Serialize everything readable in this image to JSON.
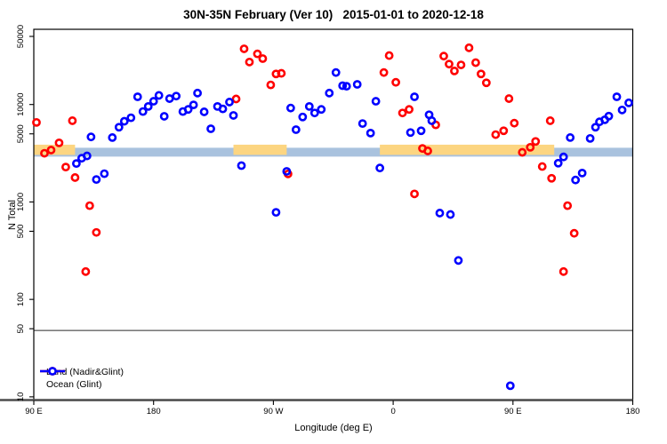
{
  "title": "30N-35N February (Ver 10)   2015-01-01 to 2020-12-18",
  "x_axis": {
    "label": "Longitude (deg E)",
    "ticks": [
      {
        "lon": 90,
        "label": "90 E"
      },
      {
        "lon": 180,
        "label": "180"
      },
      {
        "lon": 270,
        "label": "90 W"
      },
      {
        "lon": 360,
        "label": "0"
      },
      {
        "lon": 450,
        "label": "90 E"
      },
      {
        "lon": 540,
        "label": "180"
      }
    ]
  },
  "y_axis": {
    "label": "N Total",
    "ticks": [
      50000,
      10000,
      5000,
      1000,
      500,
      100,
      50,
      10
    ]
  },
  "legend": [
    {
      "label": "Land (Nadir&Glint)",
      "color": "#ff0000"
    },
    {
      "label": "Ocean (Glint)",
      "color": "#0000ff"
    }
  ],
  "chart_data": {
    "type": "scatter",
    "title": "30N-35N February (Ver 10)   2015-01-01 to 2020-12-18",
    "xlabel": "Longitude (deg E)",
    "ylabel": "N Total",
    "x_axis_note": "longitude axis runs 90E to 180 to 90W to 0 to 90E to 180 (plotted as 90..540 deg)",
    "xlim": [
      90,
      540
    ],
    "ylim": [
      10,
      50000
    ],
    "log_y": true,
    "grid": false,
    "legend_position": "bottom-left",
    "marker": "open-circle",
    "reference_line_y": 48,
    "band": {
      "ocean_band": {
        "color": "#a9c2de",
        "from": 90,
        "to": 540,
        "value_range": [
          2920,
          3600
        ]
      },
      "land_band": {
        "color": "#fcd581",
        "value_range": [
          3040,
          3870
        ],
        "segments": [
          [
            90,
            121
          ],
          [
            240,
            280
          ],
          [
            350,
            481
          ]
        ]
      }
    },
    "series": [
      {
        "name": "Land (Nadir&Glint)",
        "color": "#ff0000",
        "points": [
          [
            92,
            6550
          ],
          [
            119,
            6820
          ],
          [
            98,
            3160
          ],
          [
            103,
            3410
          ],
          [
            109,
            4040
          ],
          [
            114,
            2280
          ],
          [
            121,
            1780
          ],
          [
            132,
            916
          ],
          [
            137,
            487
          ],
          [
            129,
            193
          ],
          [
            248,
            37300
          ],
          [
            258,
            33100
          ],
          [
            252,
            27300
          ],
          [
            262,
            29600
          ],
          [
            272,
            20600
          ],
          [
            276,
            20900
          ],
          [
            268,
            15900
          ],
          [
            242,
            11400
          ],
          [
            281,
            1940
          ],
          [
            357,
            31800
          ],
          [
            353,
            21300
          ],
          [
            362,
            16900
          ],
          [
            367,
            8190
          ],
          [
            372,
            8910
          ],
          [
            376,
            1210
          ],
          [
            382,
            3540
          ],
          [
            386,
            3340
          ],
          [
            392,
            6180
          ],
          [
            398,
            31400
          ],
          [
            402,
            26000
          ],
          [
            406,
            22100
          ],
          [
            411,
            25500
          ],
          [
            417,
            38200
          ],
          [
            422,
            26900
          ],
          [
            426,
            20600
          ],
          [
            430,
            16700
          ],
          [
            447,
            11500
          ],
          [
            451,
            6440
          ],
          [
            437,
            4910
          ],
          [
            443,
            5380
          ],
          [
            478,
            6820
          ],
          [
            467,
            4180
          ],
          [
            463,
            3640
          ],
          [
            457,
            3230
          ],
          [
            472,
            2310
          ],
          [
            479,
            1750
          ],
          [
            491,
            916
          ],
          [
            496,
            477
          ],
          [
            488,
            193
          ]
        ]
      },
      {
        "name": "Ocean (Glint)",
        "color": "#0000ff",
        "points": [
          [
            133,
            4650
          ],
          [
            149,
            4580
          ],
          [
            122,
            2480
          ],
          [
            126,
            2810
          ],
          [
            130,
            2970
          ],
          [
            137,
            1700
          ],
          [
            143,
            1950
          ],
          [
            154,
            5850
          ],
          [
            158,
            6730
          ],
          [
            163,
            7310
          ],
          [
            168,
            12000
          ],
          [
            172,
            8470
          ],
          [
            176,
            9550
          ],
          [
            180,
            10800
          ],
          [
            184,
            12400
          ],
          [
            188,
            7570
          ],
          [
            192,
            11500
          ],
          [
            197,
            12200
          ],
          [
            202,
            8470
          ],
          [
            206,
            8910
          ],
          [
            210,
            9910
          ],
          [
            213,
            13100
          ],
          [
            218,
            8410
          ],
          [
            223,
            5640
          ],
          [
            228,
            9550
          ],
          [
            232,
            9020
          ],
          [
            237,
            10600
          ],
          [
            240,
            7730
          ],
          [
            246,
            2360
          ],
          [
            272,
            782
          ],
          [
            280,
            2060
          ],
          [
            283,
            9200
          ],
          [
            287,
            5520
          ],
          [
            292,
            7450
          ],
          [
            297,
            9550
          ],
          [
            301,
            8190
          ],
          [
            306,
            8910
          ],
          [
            312,
            13100
          ],
          [
            317,
            21300
          ],
          [
            322,
            15600
          ],
          [
            325,
            15400
          ],
          [
            333,
            16100
          ],
          [
            337,
            6380
          ],
          [
            343,
            5090
          ],
          [
            347,
            10800
          ],
          [
            350,
            2230
          ],
          [
            373,
            5160
          ],
          [
            376,
            12000
          ],
          [
            381,
            5380
          ],
          [
            387,
            7850
          ],
          [
            389,
            6820
          ],
          [
            395,
            769
          ],
          [
            403,
            743
          ],
          [
            409,
            251
          ],
          [
            448,
            13
          ],
          [
            484,
            2500
          ],
          [
            488,
            2900
          ],
          [
            493,
            4580
          ],
          [
            497,
            1680
          ],
          [
            502,
            1980
          ],
          [
            508,
            4490
          ],
          [
            512,
            5850
          ],
          [
            515,
            6640
          ],
          [
            519,
            6970
          ],
          [
            522,
            7600
          ],
          [
            528,
            12000
          ],
          [
            532,
            8790
          ],
          [
            537,
            10400
          ]
        ]
      }
    ]
  }
}
